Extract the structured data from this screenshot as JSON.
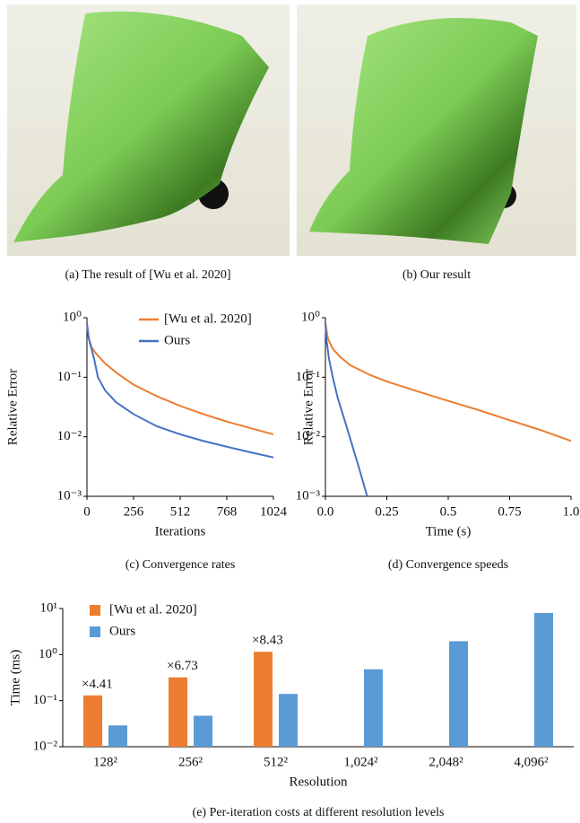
{
  "panels": [
    {
      "caption": "(a)  The result of [Wu et al. 2020]"
    },
    {
      "caption": "(b)  Our result"
    }
  ],
  "chart_data": [
    {
      "type": "line",
      "caption": "(c)  Convergence rates",
      "xlabel": "Iterations",
      "ylabel": "Relative Error",
      "log_y": true,
      "legend": "upper right",
      "xlim": [
        0,
        1024
      ],
      "xticks": [
        0,
        256,
        512,
        768,
        1024
      ],
      "ylim": [
        0.001,
        1
      ],
      "yticks": [
        {
          "value": 1,
          "label": "10⁰"
        },
        {
          "value": 0.1,
          "label": "10⁻¹"
        },
        {
          "value": 0.01,
          "label": "10⁻²"
        },
        {
          "value": 0.001,
          "label": "10⁻³"
        }
      ],
      "series": [
        {
          "name": "[Wu et al. 2020]",
          "color": "#ed7d31",
          "x": [
            0,
            10,
            25,
            50,
            100,
            160,
            256,
            384,
            512,
            640,
            768,
            896,
            1024
          ],
          "values": [
            0.8,
            0.45,
            0.32,
            0.25,
            0.17,
            0.12,
            0.075,
            0.048,
            0.033,
            0.024,
            0.018,
            0.014,
            0.011
          ]
        },
        {
          "name": "Ours",
          "color": "#4472c4",
          "x": [
            0,
            10,
            25,
            40,
            60,
            100,
            160,
            256,
            384,
            512,
            640,
            768,
            896,
            1024
          ],
          "values": [
            0.8,
            0.45,
            0.3,
            0.2,
            0.1,
            0.06,
            0.038,
            0.024,
            0.015,
            0.011,
            0.0085,
            0.0068,
            0.0055,
            0.0045
          ]
        }
      ]
    },
    {
      "type": "line",
      "caption": "(d)  Convergence speeds",
      "xlabel": "Time (s)",
      "ylabel": "Relative Error",
      "log_y": true,
      "xlim": [
        0,
        1
      ],
      "xticks": [
        {
          "value": 0,
          "label": "0.0"
        },
        0.25,
        0.5,
        0.75,
        {
          "value": 1,
          "label": "1.0"
        }
      ],
      "ylim": [
        0.001,
        1
      ],
      "yticks": [
        {
          "value": 1,
          "label": "10⁰"
        },
        {
          "value": 0.1,
          "label": "10⁻¹"
        },
        {
          "value": 0.01,
          "label": "10⁻²"
        },
        {
          "value": 0.001,
          "label": "10⁻³"
        }
      ],
      "series": [
        {
          "color": "#ed7d31",
          "x": [
            0,
            0.01,
            0.03,
            0.06,
            0.1,
            0.18,
            0.25,
            0.375,
            0.5,
            0.625,
            0.75,
            0.875,
            1
          ],
          "values": [
            0.8,
            0.45,
            0.3,
            0.22,
            0.16,
            0.11,
            0.085,
            0.058,
            0.04,
            0.028,
            0.019,
            0.013,
            0.0085
          ]
        },
        {
          "color": "#4472c4",
          "x": [
            0,
            0.005,
            0.015,
            0.03,
            0.05,
            0.08,
            0.11,
            0.14,
            0.17
          ],
          "values": [
            0.8,
            0.4,
            0.2,
            0.1,
            0.045,
            0.018,
            0.007,
            0.0027,
            0.001
          ]
        }
      ]
    },
    {
      "type": "bar",
      "caption": "(e)  Per-iteration costs at different resolution levels",
      "xlabel": "Resolution",
      "ylabel": "Time (ms)",
      "log_y": true,
      "legend": "upper left",
      "categories": [
        "128²",
        "256²",
        "512²",
        "1,024²",
        "2,048²",
        "4,096²"
      ],
      "ylim": [
        0.01,
        10
      ],
      "yticks": [
        {
          "value": 10,
          "label": "10¹"
        },
        {
          "value": 1,
          "label": "10⁰"
        },
        {
          "value": 0.1,
          "label": "10⁻¹"
        },
        {
          "value": 0.01,
          "label": "10⁻²"
        }
      ],
      "annotations": [
        "×4.41",
        "×6.73",
        "×8.43"
      ],
      "series": [
        {
          "name": "[Wu et al. 2020]",
          "color": "#ed7d31",
          "values": [
            0.13,
            0.32,
            1.15,
            null,
            null,
            null
          ]
        },
        {
          "name": "Ours",
          "color": "#5b9bd5",
          "values": [
            0.029,
            0.047,
            0.14,
            0.48,
            1.95,
            8.0
          ]
        }
      ]
    }
  ]
}
